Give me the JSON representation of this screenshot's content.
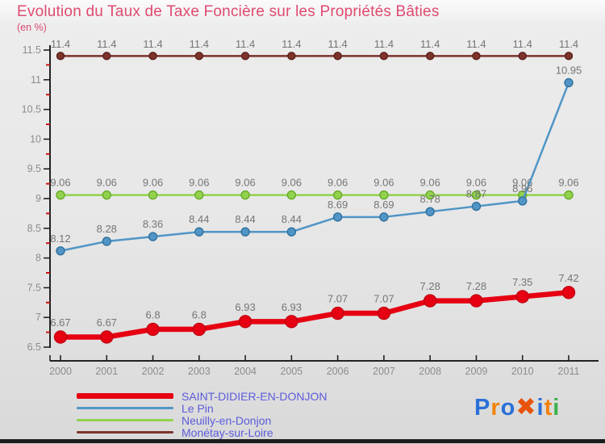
{
  "colors": {
    "title": "#df4a70",
    "legend_text": "#5c5cdb",
    "axis": "#222222",
    "minor_tick": "#cc1111",
    "data_label": "#757575",
    "tick_label": "#8d8d8d",
    "bottom_bar": "#1d1d1d"
  },
  "chart_data": {
    "type": "line",
    "title": "Evolution du Taux de Taxe Foncière sur les Propriétés Bâties",
    "subtitle": "(en %)",
    "x": [
      2000,
      2001,
      2002,
      2003,
      2004,
      2005,
      2006,
      2007,
      2008,
      2009,
      2010,
      2011
    ],
    "xlabel": "",
    "ylabel": "",
    "ylim": [
      6.5,
      11.5
    ],
    "yticks": [
      "6.5",
      "7",
      "7.5",
      "8",
      "8.5",
      "9",
      "9.5",
      "10",
      "10.5",
      "11",
      "11.5"
    ],
    "grid": false,
    "legend_position": "bottom-left",
    "series": [
      {
        "name": "SAINT-DIDIER-EN-DONJON",
        "color": "#e60012",
        "marker_stroke": "#c20010",
        "line_width": 6.5,
        "marker_radius": 7.5,
        "values": [
          6.67,
          6.67,
          6.8,
          6.8,
          6.93,
          6.93,
          7.07,
          7.07,
          7.28,
          7.28,
          7.35,
          7.42
        ],
        "labels": [
          "6.67",
          "6.67",
          "6.8",
          "6.8",
          "6.93",
          "6.93",
          "7.07",
          "7.07",
          "7.28",
          "7.28",
          "7.35",
          "7.42"
        ]
      },
      {
        "name": "Le Pin",
        "color": "#5095c6",
        "marker_stroke": "#31719f",
        "line_width": 2.5,
        "marker_radius": 5,
        "values": [
          8.12,
          8.28,
          8.36,
          8.44,
          8.44,
          8.44,
          8.69,
          8.69,
          8.78,
          8.87,
          8.96,
          10.95
        ],
        "labels": [
          "8.12",
          "8.28",
          "8.36",
          "8.44",
          "8.44",
          "8.44",
          "8.69",
          "8.69",
          "8.78",
          "8.87",
          "8.96",
          "10.95"
        ]
      },
      {
        "name": "Neuilly-en-Donjon",
        "color": "#92d24f",
        "marker_stroke": "#67aa28",
        "line_width": 2.5,
        "marker_radius": 5,
        "values": [
          9.06,
          9.06,
          9.06,
          9.06,
          9.06,
          9.06,
          9.06,
          9.06,
          9.06,
          9.06,
          9.06,
          9.06
        ],
        "labels": [
          "9.06",
          "9.06",
          "9.06",
          "9.06",
          "9.06",
          "9.06",
          "9.06",
          "9.06",
          "9.06",
          "9.06",
          "9.06",
          "9.06"
        ]
      },
      {
        "name": "Monétay-sur-Loire",
        "color": "#7d332b",
        "marker_stroke": "#5b2018",
        "line_width": 2.5,
        "marker_radius": 4.5,
        "values": [
          11.4,
          11.4,
          11.4,
          11.4,
          11.4,
          11.4,
          11.4,
          11.4,
          11.4,
          11.4,
          11.4,
          11.4
        ],
        "labels": [
          "11.4",
          "11.4",
          "11.4",
          "11.4",
          "11.4",
          "11.4",
          "11.4",
          "11.4",
          "11.4",
          "11.4",
          "11.4",
          "11.4"
        ]
      }
    ]
  },
  "logo": {
    "brand": "Proxiti",
    "letters": [
      {
        "ch": "P",
        "color": "#2a70d8"
      },
      {
        "ch": "r",
        "color": "#f1830c"
      },
      {
        "ch": "o",
        "color": "#2a70d8"
      },
      {
        "ch": "✖",
        "color": "#e8530c"
      },
      {
        "ch": "i",
        "color": "#2a70d8"
      },
      {
        "ch": "t",
        "color": "#f1830c"
      },
      {
        "ch": "i",
        "color": "#3cb24a"
      }
    ]
  }
}
